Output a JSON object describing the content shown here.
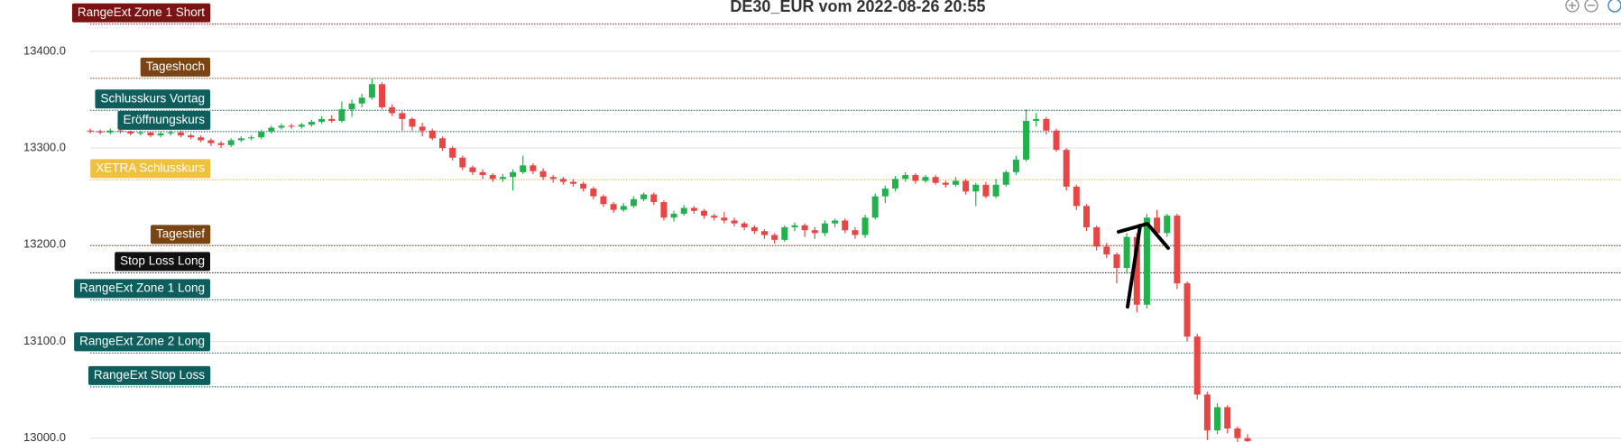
{
  "chart_data": {
    "type": "candlestick",
    "title": "DE30_EUR vom 2022-08-26 20:55",
    "up_color": "#22b14c",
    "down_color": "#e84545",
    "ylim": [
      12996,
      13453
    ],
    "yticks": [
      {
        "value": 13000,
        "label": "13000.0"
      },
      {
        "value": 13100,
        "label": "13100.0"
      },
      {
        "value": 13200,
        "label": "13200.0"
      },
      {
        "value": 13300,
        "label": "13300.0"
      },
      {
        "value": 13400,
        "label": "13400.0"
      }
    ],
    "grid": true,
    "levels": [
      {
        "label": "RangeExt Zone 1 Short",
        "value": 13428,
        "color": "#7a1414"
      },
      {
        "label": "Tageshoch",
        "value": 13372,
        "color": "#7a4512"
      },
      {
        "label": "Schlusskurs Vortag",
        "value": 13339,
        "color": "#0d5e5c"
      },
      {
        "label": "Eröffnungskurs",
        "value": 13317,
        "color": "#0d5e5c"
      },
      {
        "label": "XETRA Schlusskurs",
        "value": 13267,
        "color": "#f0c040"
      },
      {
        "label": "Tagestief",
        "value": 13199,
        "color": "#7a4512"
      },
      {
        "label": "Stop Loss Long",
        "value": 13171,
        "color": "#111111"
      },
      {
        "label": "RangeExt Zone 1 Long",
        "value": 13143,
        "color": "#0d5e5c"
      },
      {
        "label": "RangeExt Zone 2 Long",
        "value": 13088,
        "color": "#0d5e5c"
      },
      {
        "label": "RangeExt Stop Loss",
        "value": 13053,
        "color": "#0d5e5c"
      }
    ],
    "open": [
      13318,
      13317,
      13316,
      13318,
      13317,
      13315,
      13316,
      13313,
      13315,
      13316,
      13313,
      13311,
      13308,
      13305,
      13303,
      13308,
      13310,
      13311,
      13317,
      13321,
      13323,
      13322,
      13324,
      13327,
      13330,
      13328,
      13340,
      13346,
      13352,
      13366,
      13342,
      13336,
      13330,
      13322,
      13318,
      13310,
      13300,
      13290,
      13280,
      13275,
      13272,
      13268,
      13270,
      13275,
      13282,
      13276,
      13270,
      13268,
      13265,
      13263,
      13258,
      13250,
      13242,
      13236,
      13240,
      13247,
      13252,
      13244,
      13228,
      13232,
      13238,
      13235,
      13230,
      13228,
      13225,
      13222,
      13218,
      13214,
      13210,
      13205,
      13218,
      13220,
      13215,
      13212,
      13222,
      13225,
      13215,
      13210,
      13228,
      13250,
      13258,
      13268,
      13272,
      13266,
      13270,
      13264,
      13262,
      13266,
      13255,
      13262,
      13250,
      13262,
      13275,
      13288,
      13328,
      13330,
      13318,
      13298,
      13260,
      13240,
      13218,
      13198,
      13190,
      13176,
      13208,
      13138,
      13228,
      13212,
      13230,
      13160,
      13105,
      13045,
      13008,
      13032,
      13010,
      13000
    ],
    "high": [
      13320,
      13319,
      13320,
      13320,
      13318,
      13318,
      13317,
      13317,
      13318,
      13318,
      13315,
      13313,
      13310,
      13307,
      13310,
      13312,
      13313,
      13319,
      13323,
      13325,
      13325,
      13326,
      13329,
      13333,
      13334,
      13348,
      13350,
      13356,
      13372,
      13368,
      13345,
      13338,
      13332,
      13326,
      13320,
      13312,
      13302,
      13292,
      13282,
      13278,
      13274,
      13273,
      13278,
      13292,
      13284,
      13279,
      13272,
      13270,
      13268,
      13265,
      13260,
      13252,
      13244,
      13243,
      13250,
      13254,
      13254,
      13246,
      13235,
      13241,
      13240,
      13237,
      13232,
      13234,
      13228,
      13224,
      13220,
      13216,
      13212,
      13220,
      13223,
      13222,
      13218,
      13225,
      13227,
      13227,
      13218,
      13231,
      13253,
      13261,
      13271,
      13275,
      13274,
      13272,
      13272,
      13266,
      13270,
      13268,
      13264,
      13265,
      13268,
      13277,
      13292,
      13340,
      13336,
      13332,
      13320,
      13300,
      13262,
      13242,
      13220,
      13202,
      13192,
      13212,
      13212,
      13232,
      13236,
      13232,
      13232,
      13162,
      13108,
      13048,
      13036,
      13034,
      13012,
      13004
    ],
    "low": [
      13315,
      13314,
      13314,
      13315,
      13313,
      13313,
      13311,
      13311,
      13313,
      13311,
      13309,
      13306,
      13302,
      13300,
      13301,
      13306,
      13308,
      13309,
      13315,
      13319,
      13320,
      13320,
      13322,
      13325,
      13326,
      13326,
      13332,
      13342,
      13350,
      13340,
      13333,
      13318,
      13318,
      13312,
      13308,
      13297,
      13287,
      13277,
      13272,
      13268,
      13265,
      13265,
      13256,
      13273,
      13273,
      13267,
      13264,
      13262,
      13260,
      13255,
      13247,
      13239,
      13233,
      13234,
      13238,
      13245,
      13241,
      13225,
      13224,
      13230,
      13232,
      13227,
      13225,
      13222,
      13219,
      13215,
      13211,
      13206,
      13201,
      13203,
      13214,
      13208,
      13206,
      13209,
      13218,
      13212,
      13206,
      13207,
      13226,
      13243,
      13255,
      13265,
      13263,
      13264,
      13262,
      13259,
      13260,
      13252,
      13240,
      13248,
      13248,
      13260,
      13272,
      13286,
      13322,
      13314,
      13296,
      13256,
      13236,
      13214,
      13194,
      13186,
      13160,
      13170,
      13130,
      13134,
      13208,
      13208,
      13154,
      13100,
      13040,
      12998,
      13004,
      13005,
      12996,
      12996
    ],
    "close": [
      13317,
      13316,
      13318,
      13317,
      13315,
      13316,
      13313,
      13315,
      13316,
      13313,
      13311,
      13308,
      13305,
      13303,
      13308,
      13310,
      13311,
      13317,
      13321,
      13323,
      13322,
      13324,
      13327,
      13330,
      13328,
      13340,
      13346,
      13352,
      13366,
      13342,
      13336,
      13330,
      13322,
      13318,
      13310,
      13300,
      13290,
      13280,
      13275,
      13272,
      13268,
      13270,
      13275,
      13282,
      13276,
      13270,
      13268,
      13265,
      13263,
      13258,
      13250,
      13242,
      13236,
      13240,
      13247,
      13252,
      13244,
      13228,
      13232,
      13238,
      13235,
      13230,
      13228,
      13225,
      13222,
      13218,
      13214,
      13210,
      13205,
      13218,
      13220,
      13215,
      13212,
      13222,
      13225,
      13215,
      13210,
      13228,
      13250,
      13258,
      13268,
      13272,
      13266,
      13270,
      13264,
      13262,
      13266,
      13255,
      13262,
      13250,
      13262,
      13275,
      13288,
      13328,
      13330,
      13318,
      13298,
      13260,
      13240,
      13218,
      13198,
      13190,
      13176,
      13208,
      13138,
      13228,
      13212,
      13230,
      13160,
      13105,
      13045,
      13008,
      13032,
      13010,
      13000,
      12997
    ]
  }
}
